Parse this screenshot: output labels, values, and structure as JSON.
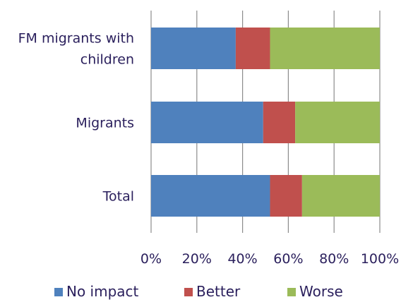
{
  "chart_data": {
    "type": "bar",
    "orientation": "horizontal",
    "stacked": true,
    "categories": [
      [
        "FM migrants with",
        "children"
      ],
      [
        "Migrants"
      ],
      [
        "Total"
      ]
    ],
    "series": [
      {
        "name": "No impact",
        "color": "#4f81bd",
        "values": [
          37,
          49,
          52
        ]
      },
      {
        "name": "Better",
        "color": "#c0504d",
        "values": [
          15,
          14,
          14
        ]
      },
      {
        "name": "Worse",
        "color": "#9bbb59",
        "values": [
          48,
          37,
          34
        ]
      }
    ],
    "xlim": [
      0,
      100
    ],
    "xticks": [
      "0%",
      "20%",
      "40%",
      "60%",
      "80%",
      "100%"
    ],
    "grid": true,
    "legend_position": "bottom"
  }
}
